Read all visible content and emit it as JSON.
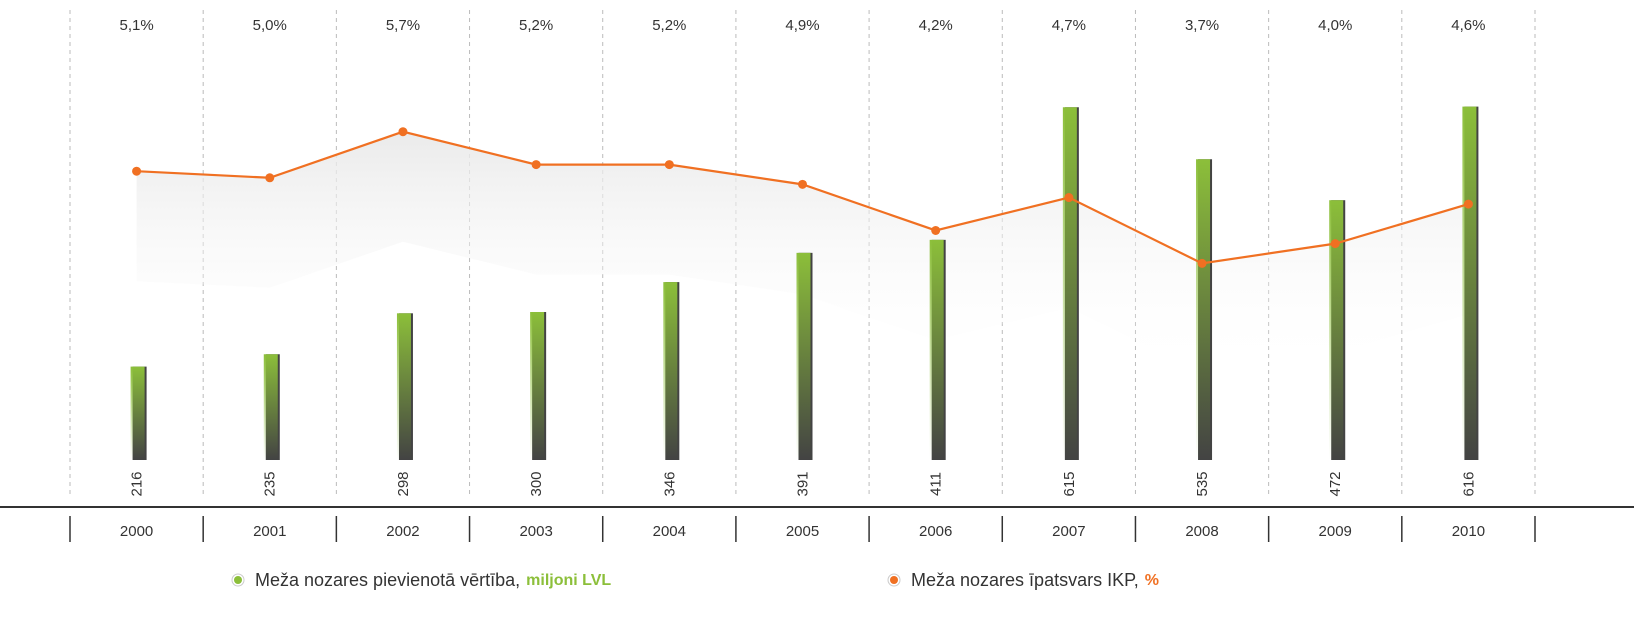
{
  "chart_data": {
    "type": "bar",
    "categories": [
      "2000",
      "2001",
      "2002",
      "2003",
      "2004",
      "2005",
      "2006",
      "2007",
      "2008",
      "2009",
      "2010"
    ],
    "series": [
      {
        "name": "Meža nozares pievienotā vērtība,",
        "unit": "miljoni LVL",
        "color": "#8cbf3a",
        "type": "bar",
        "values": [
          216,
          235,
          298,
          300,
          346,
          391,
          411,
          615,
          535,
          472,
          616
        ]
      },
      {
        "name": "Meža nozares īpatsvars IKP,",
        "unit": "%",
        "color": "#f07022",
        "type": "line",
        "axis": "y2",
        "values": [
          5.1,
          5.0,
          5.7,
          5.2,
          5.2,
          4.9,
          4.2,
          4.7,
          3.7,
          4.0,
          4.6
        ],
        "value_labels": [
          "5,1%",
          "5,0%",
          "5,7%",
          "5,2%",
          "5,2%",
          "4,9%",
          "4,2%",
          "4,7%",
          "3,7%",
          "4,0%",
          "4,6%"
        ]
      }
    ],
    "ylim": [
      0,
      780
    ],
    "y2lim": [
      0,
      7.7
    ]
  }
}
